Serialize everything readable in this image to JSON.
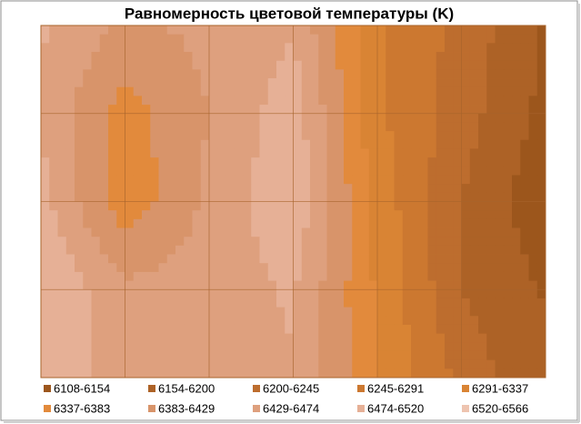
{
  "chart_data": {
    "type": "contour",
    "title": "Равномерность цветовой температуры (K)",
    "levels": [
      6108,
      6154,
      6200,
      6245,
      6291,
      6337,
      6383,
      6429,
      6474,
      6520,
      6566
    ],
    "series": [
      {
        "name": "6108-6154",
        "color": "#9c561c"
      },
      {
        "name": "6154-6200",
        "color": "#ad6226"
      },
      {
        "name": "6200-6245",
        "color": "#bd6d2e"
      },
      {
        "name": "6245-6291",
        "color": "#cc7830"
      },
      {
        "name": "6291-6337",
        "color": "#d98434"
      },
      {
        "name": "6337-6383",
        "color": "#e28a3c"
      },
      {
        "name": "6383-6429",
        "color": "#d8946a"
      },
      {
        "name": "6429-6474",
        "color": "#dea07e"
      },
      {
        "name": "6474-6520",
        "color": "#e6b096"
      },
      {
        "name": "6520-6566",
        "color": "#eec4b0"
      }
    ],
    "z": [
      [
        6480,
        6420,
        6440,
        6470,
        6300,
        6230,
        6150
      ],
      [
        6470,
        6360,
        6430,
        6500,
        6300,
        6220,
        6140
      ],
      [
        6490,
        6350,
        6440,
        6510,
        6320,
        6200,
        6120
      ],
      [
        6520,
        6440,
        6450,
        6480,
        6330,
        6200,
        6150
      ],
      [
        6500,
        6460,
        6450,
        6470,
        6340,
        6230,
        6160
      ]
    ],
    "grid": true
  }
}
